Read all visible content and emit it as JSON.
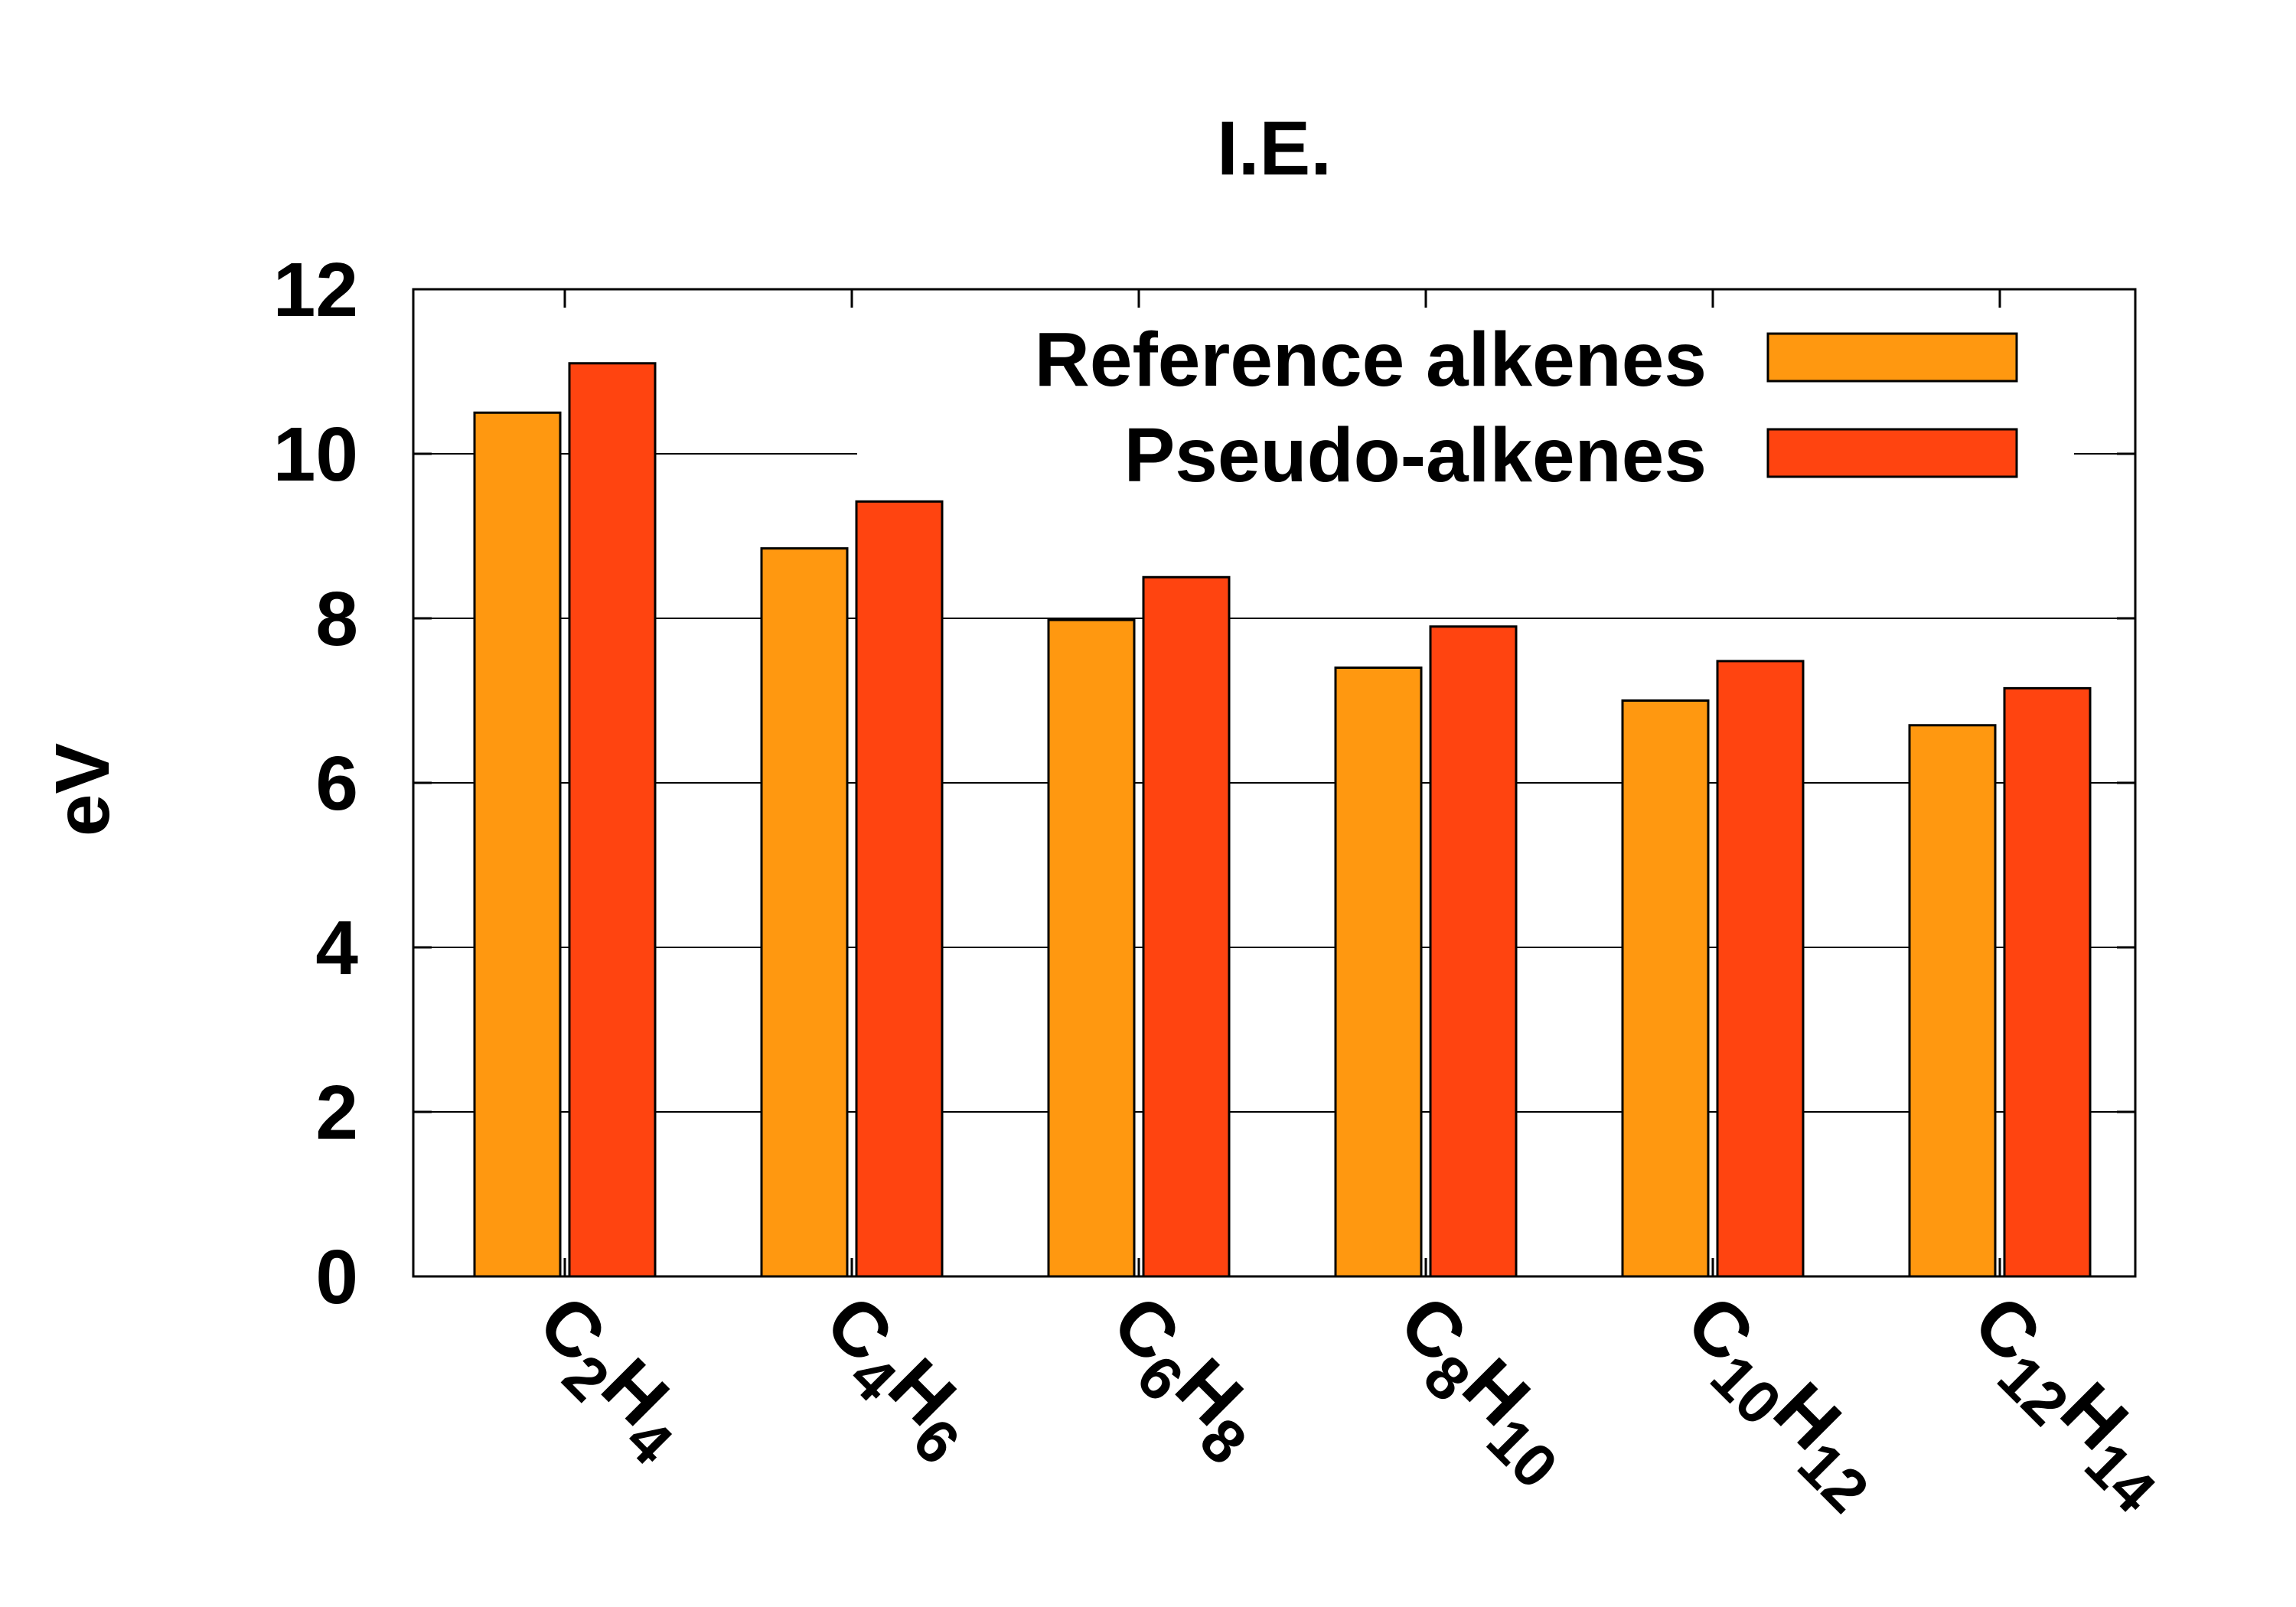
{
  "chart_data": {
    "type": "bar",
    "title": "I.E.",
    "xlabel": "",
    "ylabel": "eV",
    "ylim": [
      0,
      12
    ],
    "yticks": [
      "0",
      "2",
      "4",
      "6",
      "8",
      "10",
      "12"
    ],
    "grid": true,
    "legend_position": "top-right",
    "categories": [
      {
        "base": "C",
        "n1": "2",
        "mid": "H",
        "n2": "4"
      },
      {
        "base": "C",
        "n1": "4",
        "mid": "H",
        "n2": "6"
      },
      {
        "base": "C",
        "n1": "6",
        "mid": "H",
        "n2": "8"
      },
      {
        "base": "C",
        "n1": "8",
        "mid": "H",
        "n2": "10"
      },
      {
        "base": "C",
        "n1": "10",
        "mid": "H",
        "n2": "12"
      },
      {
        "base": "C",
        "n1": "12",
        "mid": "H",
        "n2": "14"
      }
    ],
    "series": [
      {
        "name": "Reference alkenes",
        "color": "#FF9810",
        "values": [
          10.5,
          8.85,
          7.98,
          7.4,
          7.0,
          6.7
        ]
      },
      {
        "name": "Pseudo-alkenes",
        "color": "#FF4410",
        "values": [
          11.1,
          9.42,
          8.5,
          7.9,
          7.48,
          7.15
        ]
      }
    ]
  }
}
